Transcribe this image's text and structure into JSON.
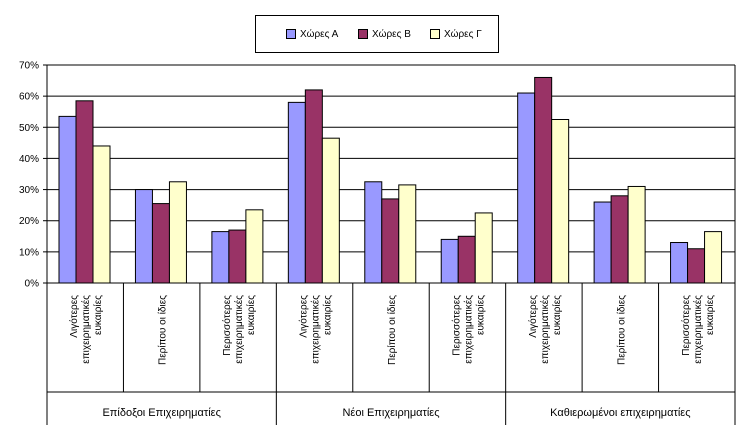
{
  "chart_data": {
    "type": "bar",
    "title": "",
    "xlabel": "",
    "ylabel": "",
    "ylim": [
      0,
      70
    ],
    "yticks": [
      "0%",
      "10%",
      "20%",
      "30%",
      "40%",
      "50%",
      "60%",
      "70%"
    ],
    "grid": true,
    "legend_position": "top-center",
    "groups": [
      {
        "label": "Επίδοξοι Επιχειρηματίες",
        "span": [
          0,
          2
        ]
      },
      {
        "label": "Νέοι Επιχειρηματίες",
        "span": [
          3,
          5
        ]
      },
      {
        "label": "Καθιερωμένοι επιχειρηματίες",
        "span": [
          6,
          8
        ]
      }
    ],
    "categories": [
      [
        "Λιγότερες",
        "επιχειρηματικές",
        "ευκαιρίες"
      ],
      [
        "Περίπου οι ίδιες"
      ],
      [
        "Περισσότερες",
        "επιχειρηματικές",
        "ευκαιρίες"
      ],
      [
        "Λιγότερες",
        "επιχειρηματικές",
        "ευκαιρίες"
      ],
      [
        "Περίπου οι ίδιες"
      ],
      [
        "Περισσότερες",
        "επιχειρηματικές",
        "ευκαιρίες"
      ],
      [
        "Λιγότερες",
        "επιχειρηματικές",
        "ευκαιρίες"
      ],
      [
        "Περίπου οι ίδιες"
      ],
      [
        "Περισσότερες",
        "επιχειρηματικές",
        "ευκαιρίες"
      ]
    ],
    "series": [
      {
        "name": "Χώρες Α",
        "color": "#9999FF",
        "values": [
          53.5,
          30,
          16.5,
          58,
          32.5,
          14,
          61,
          26,
          13
        ]
      },
      {
        "name": "Χώρες Β",
        "color": "#993366",
        "values": [
          58.5,
          25.5,
          17,
          62,
          27,
          15,
          66,
          28,
          11
        ]
      },
      {
        "name": "Χώρες Γ",
        "color": "#FFFFCC",
        "values": [
          44,
          32.5,
          23.5,
          46.5,
          31.5,
          22.5,
          52.5,
          31,
          16.5
        ]
      }
    ],
    "plot_background": "#ffffff",
    "grid_color": "#000000"
  }
}
